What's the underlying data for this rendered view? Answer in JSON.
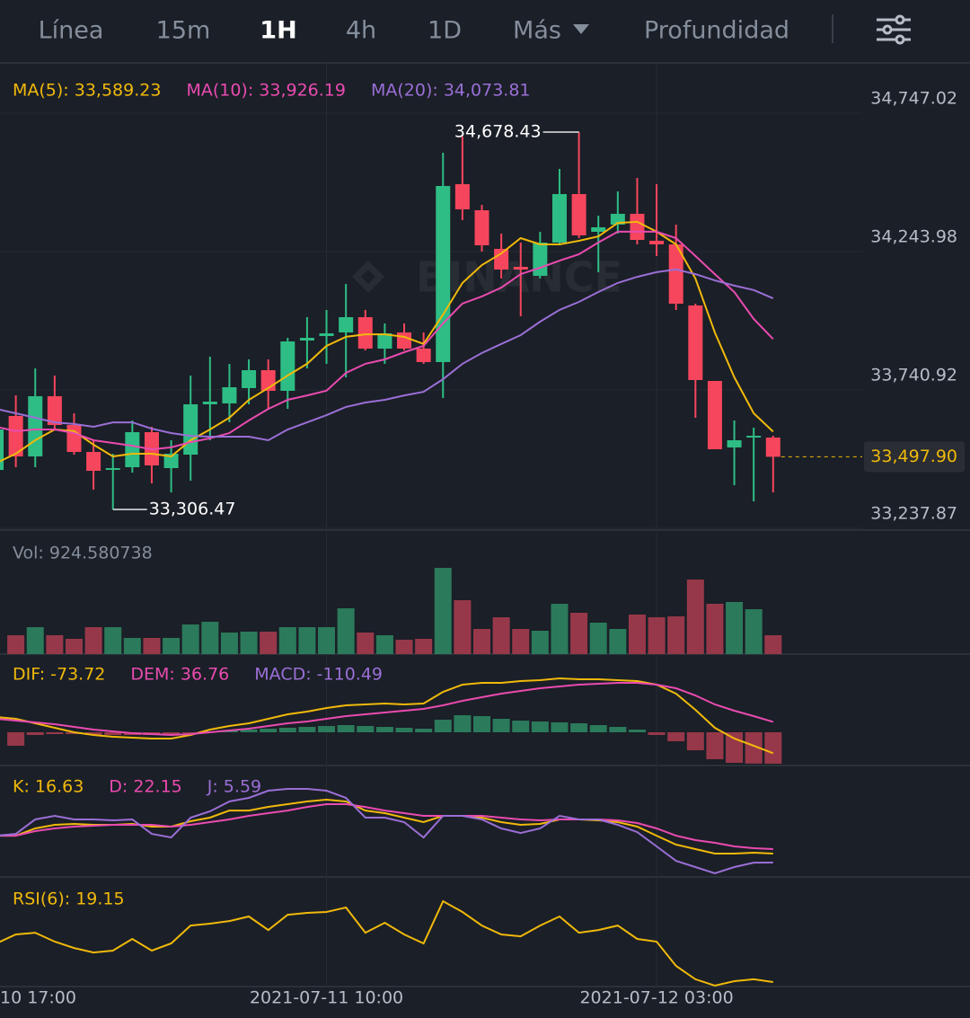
{
  "toolbar": {
    "tabs": [
      "Línea",
      "15m",
      "1H",
      "4h",
      "1D",
      "Más",
      "Profundidad"
    ],
    "active": 2
  },
  "chart_data": [
    {
      "type": "candlestick",
      "watermark": "BINANCE",
      "categories": [
        "10 17:00",
        null,
        null,
        null,
        null,
        null,
        null,
        null,
        null,
        null,
        null,
        null,
        null,
        null,
        null,
        null,
        null,
        "2021-07-11 10:00",
        null,
        null,
        null,
        null,
        null,
        null,
        null,
        null,
        null,
        null,
        null,
        null,
        null,
        null,
        null,
        null,
        "2021-07-12 03:00",
        null,
        null,
        null,
        null,
        null,
        null
      ],
      "open": [
        33450,
        33646.2,
        33499.2,
        33718.1,
        33613.5,
        33515.5,
        33450.2,
        33460.0,
        33587.4,
        33456.7,
        33505.7,
        33688.7,
        33691.9,
        33747.5,
        33812.8,
        33737.7,
        33920.6,
        33936.9,
        33950.0,
        34005.5,
        33891.2,
        33950.0,
        33891.2,
        33842.2,
        34489.0,
        34394.2,
        34253.8,
        34188.4,
        34155.8,
        34276.6,
        34453.0,
        34315.8,
        34342.0,
        34381.2,
        34283.2,
        34270.1,
        34048.0,
        33773.6,
        33531.9,
        33567.8,
        33567.8
      ],
      "high": [
        33630,
        33721.3,
        33819.3,
        33793.2,
        33656.0,
        33558.0,
        33509.0,
        33629.9,
        33607.0,
        33558.0,
        33793.2,
        33861.8,
        33835.7,
        33852.0,
        33852.0,
        33930.4,
        34005.5,
        34031.6,
        34126.4,
        34031.6,
        33982.6,
        33982.6,
        33950.0,
        34603.3,
        34662.1,
        34413.8,
        34309.3,
        34276.6,
        34315.8,
        34544.5,
        34678.43,
        34374.6,
        34462.8,
        34511.8,
        34489.0,
        34342.0,
        34054.5,
        33773.6,
        33629.9,
        33603.7,
        33574.3
      ],
      "low": [
        33440,
        33460.0,
        33460.0,
        33597.2,
        33505.7,
        33378.3,
        33306.47,
        33440.4,
        33401.2,
        33368.5,
        33411.0,
        33558.0,
        33623.3,
        33688.7,
        33672.3,
        33672.3,
        33819.3,
        33835.7,
        33786.7,
        33884.7,
        33835.7,
        33884.7,
        33835.7,
        33711.5,
        34358.3,
        34244.0,
        34146.0,
        34008.8,
        34146.0,
        34266.8,
        34293.0,
        34168.8,
        34309.3,
        34270.1,
        34227.6,
        34031.6,
        33639.7,
        33525.3,
        33394.7,
        33335.9,
        33368.5
      ],
      "close": [
        33597,
        33499.2,
        33718.1,
        33613.5,
        33515.5,
        33446.9,
        33456.7,
        33587.4,
        33466.5,
        33509.0,
        33688.7,
        33698.5,
        33750.7,
        33812.8,
        33737.7,
        33917.3,
        33930.4,
        33946.7,
        34005.5,
        33891.2,
        33946.7,
        33891.2,
        33842.2,
        34482.4,
        34397.5,
        34266.8,
        34178.6,
        34178.6,
        34276.6,
        34453.0,
        34302.8,
        34332.2,
        34381.2,
        34286.4,
        34270.1,
        34054.5,
        33776.9,
        33525.3,
        33558.0,
        33574.3,
        33497.9
      ],
      "up_color": "#2ebd85",
      "down_color": "#f6465d",
      "series": [
        {
          "name": "MA(5): 33,589.23",
          "color": "#f0b90b",
          "values": [
            33476,
            33509,
            33558,
            33597,
            33591,
            33542,
            33499,
            33509,
            33509,
            33499,
            33558,
            33597,
            33640,
            33705,
            33748,
            33793,
            33836,
            33901,
            33934,
            33943,
            33943,
            33934,
            33908,
            34015,
            34130,
            34195,
            34237,
            34293,
            34270,
            34270,
            34283,
            34299,
            34348,
            34352,
            34316,
            34270,
            34146,
            33950,
            33787,
            33656,
            33589.23
          ]
        },
        {
          "name": "MA(10): 33,926.19",
          "color": "#e94bb0",
          "values": [
            33607,
            33591,
            33597,
            33597,
            33584,
            33558,
            33548,
            33538,
            33525,
            33532,
            33551,
            33565,
            33584,
            33630,
            33672,
            33705,
            33721,
            33738,
            33803,
            33836,
            33852,
            33878,
            33901,
            33983,
            34055,
            34081,
            34113,
            34162,
            34185,
            34211,
            34234,
            34277,
            34316,
            34316,
            34316,
            34293,
            34228,
            34162,
            34097,
            33999,
            33926.19
          ]
        },
        {
          "name": "MA(20): 34,073.81",
          "color": "#9a6fd6",
          "values": [
            33672,
            33656,
            33640,
            33623,
            33617,
            33607,
            33623,
            33623,
            33600,
            33584,
            33574,
            33571,
            33571,
            33571,
            33558,
            33597,
            33623,
            33649,
            33679,
            33695,
            33705,
            33721,
            33734,
            33780,
            33836,
            33875,
            33908,
            33940,
            33989,
            34032,
            34061,
            34097,
            34130,
            34152,
            34169,
            34179,
            34162,
            34139,
            34120,
            34104,
            34073.81
          ]
        }
      ],
      "ylim": [
        33231.3,
        34880.9
      ],
      "yticks": [
        {
          "value": 34747.02,
          "label": "34,747.02"
        },
        {
          "value": 34243.98,
          "label": "34,243.98"
        },
        {
          "value": 33740.92,
          "label": "33,740.92"
        },
        {
          "value": 33237.87,
          "label": "33,237.87"
        }
      ],
      "last_price": {
        "value": 33497.9,
        "label": "33,497.90",
        "color": "#f0b90b"
      },
      "annotations": [
        {
          "value": 34678.43,
          "label": "34,678.43"
        },
        {
          "value": 33306.47,
          "label": "33,306.47"
        }
      ]
    },
    {
      "type": "volume",
      "ylim": [
        0,
        5636
      ],
      "up_color": "#2b7a5b",
      "down_color": "#97384a",
      "series": [
        {
          "name": "Vol: 924.580738",
          "color": "#848e9c",
          "values": [
            null,
            925,
            1321,
            925,
            749,
            1321,
            1321,
            793,
            793,
            793,
            1453,
            1585,
            1057,
            1101,
            1101,
            1321,
            1321,
            1321,
            2245,
            1057,
            925,
            704,
            749,
            4227,
            2642,
            1233,
            1805,
            1233,
            1145,
            2466,
            2025,
            1541,
            1233,
            1937,
            1805,
            1849,
            3654,
            2466,
            2554,
            2201,
            924.580738
          ]
        }
      ]
    },
    {
      "type": "macd",
      "ylim": [
        -116.9,
        252.8
      ],
      "up_color": "#2b7a5b",
      "down_color": "#97384a",
      "series": [
        {
          "name": "DIF: -73.72",
          "color": "#f0b90b",
          "values": [
            53.7,
            47.4,
            31.6,
            15.8,
            0,
            -9.5,
            -15.8,
            -19.0,
            -22.1,
            -22.1,
            -9.5,
            9.5,
            22.1,
            31.6,
            47.4,
            63.2,
            72.7,
            85.3,
            94.8,
            98.0,
            101.1,
            98.0,
            101.1,
            142.2,
            167.5,
            173.8,
            173.8,
            180.1,
            183.3,
            189.6,
            186.4,
            186.4,
            183.3,
            180.1,
            167.5,
            135.9,
            79.0,
            15.8,
            -22.1,
            -47.4,
            -73.72
          ]
        },
        {
          "name": "DEM: 36.76",
          "color": "#e94bb0",
          "values": [
            47.4,
            41.1,
            34.8,
            28.4,
            19.0,
            9.5,
            3.2,
            -3.2,
            -6.3,
            -9.5,
            -6.3,
            0,
            6.3,
            12.6,
            22.1,
            31.6,
            37.9,
            47.4,
            56.9,
            63.2,
            69.5,
            75.8,
            82.2,
            94.8,
            110.6,
            123.2,
            135.9,
            145.4,
            154.8,
            161.2,
            167.5,
            170.6,
            173.8,
            173.8,
            167.5,
            154.8,
            129.6,
            98.0,
            75.8,
            56.9,
            36.76
          ]
        },
        {
          "name": "MACD: -110.49",
          "color": "#9a6fd6",
          "mark": "bar",
          "values": [
            null,
            -47.4,
            -9.5,
            -6.3,
            -6.3,
            -9.5,
            -9.5,
            -9.5,
            -9.5,
            -6.3,
            -3.2,
            3.2,
            6.3,
            9.5,
            12.6,
            15.8,
            18.9,
            22.1,
            25.3,
            22.1,
            18.9,
            15.8,
            12.6,
            44.2,
            60.0,
            56.9,
            47.4,
            41.1,
            37.9,
            34.8,
            31.6,
            25.3,
            18.9,
            9.5,
            -9.5,
            -31.6,
            -63.2,
            -94.8,
            -107.4,
            -110.0,
            -110.49
          ]
        }
      ]
    },
    {
      "type": "line",
      "ylim": [
        -14.3,
        115.9
      ],
      "series": [
        {
          "name": "K: 16.63",
          "color": "#f0b90b",
          "values": [
            38.6,
            38.6,
            47.5,
            51.9,
            53.0,
            51.9,
            51.9,
            53.0,
            49.7,
            49.7,
            56.3,
            60.7,
            69.5,
            69.5,
            74.0,
            77.3,
            80.6,
            82.8,
            80.6,
            69.5,
            66.2,
            60.7,
            55.2,
            62.9,
            62.9,
            60.7,
            55.2,
            51.9,
            53.0,
            58.5,
            58.5,
            57.4,
            55.2,
            49.7,
            38.6,
            27.6,
            22.1,
            16.6,
            16.6,
            17.7,
            16.63
          ]
        },
        {
          "name": "D: 22.15",
          "color": "#e94bb0",
          "values": [
            38.6,
            38.6,
            44.2,
            47.5,
            49.7,
            50.8,
            51.9,
            51.9,
            51.9,
            49.7,
            51.9,
            55.2,
            58.5,
            62.9,
            66.2,
            69.5,
            73.9,
            77.3,
            77.3,
            73.9,
            69.5,
            66.2,
            62.9,
            62.9,
            62.9,
            62.9,
            60.7,
            58.5,
            57.4,
            58.5,
            58.5,
            58.5,
            57.4,
            54.1,
            47.5,
            38.6,
            33.1,
            29.8,
            25.4,
            23.2,
            22.15
          ]
        },
        {
          "name": "J: 5.59",
          "color": "#9a6fd6",
          "values": [
            38.6,
            40.8,
            58.5,
            62.9,
            58.5,
            58.5,
            57.4,
            58.5,
            40.8,
            36.4,
            60.7,
            68.4,
            80.6,
            85.0,
            93.8,
            96.0,
            96.0,
            93.8,
            85.0,
            60.7,
            60.7,
            55.2,
            36.4,
            62.9,
            62.9,
            58.5,
            47.5,
            41.9,
            47.5,
            62.9,
            58.5,
            58.5,
            51.9,
            43.0,
            25.4,
            7.7,
            0,
            -7.7,
            0,
            5.5,
            5.59
          ]
        }
      ]
    },
    {
      "type": "line",
      "ylim": [
        14.4,
        92.2
      ],
      "series": [
        {
          "name": "RSI(6): 19.15",
          "color": "#f0b90b",
          "values": [
            48.2,
            55.0,
            56.3,
            49.6,
            44.8,
            41.4,
            42.8,
            51.6,
            42.8,
            48.2,
            61.7,
            63.1,
            65.1,
            68.5,
            58.3,
            69.8,
            71.2,
            71.9,
            75.3,
            56.3,
            63.8,
            55.0,
            48.2,
            80.0,
            71.9,
            61.7,
            55.0,
            53.6,
            61.7,
            68.5,
            56.3,
            58.3,
            61.7,
            51.6,
            49.6,
            31.3,
            21.2,
            16.4,
            19.8,
            21.2,
            19.15
          ]
        }
      ]
    }
  ]
}
